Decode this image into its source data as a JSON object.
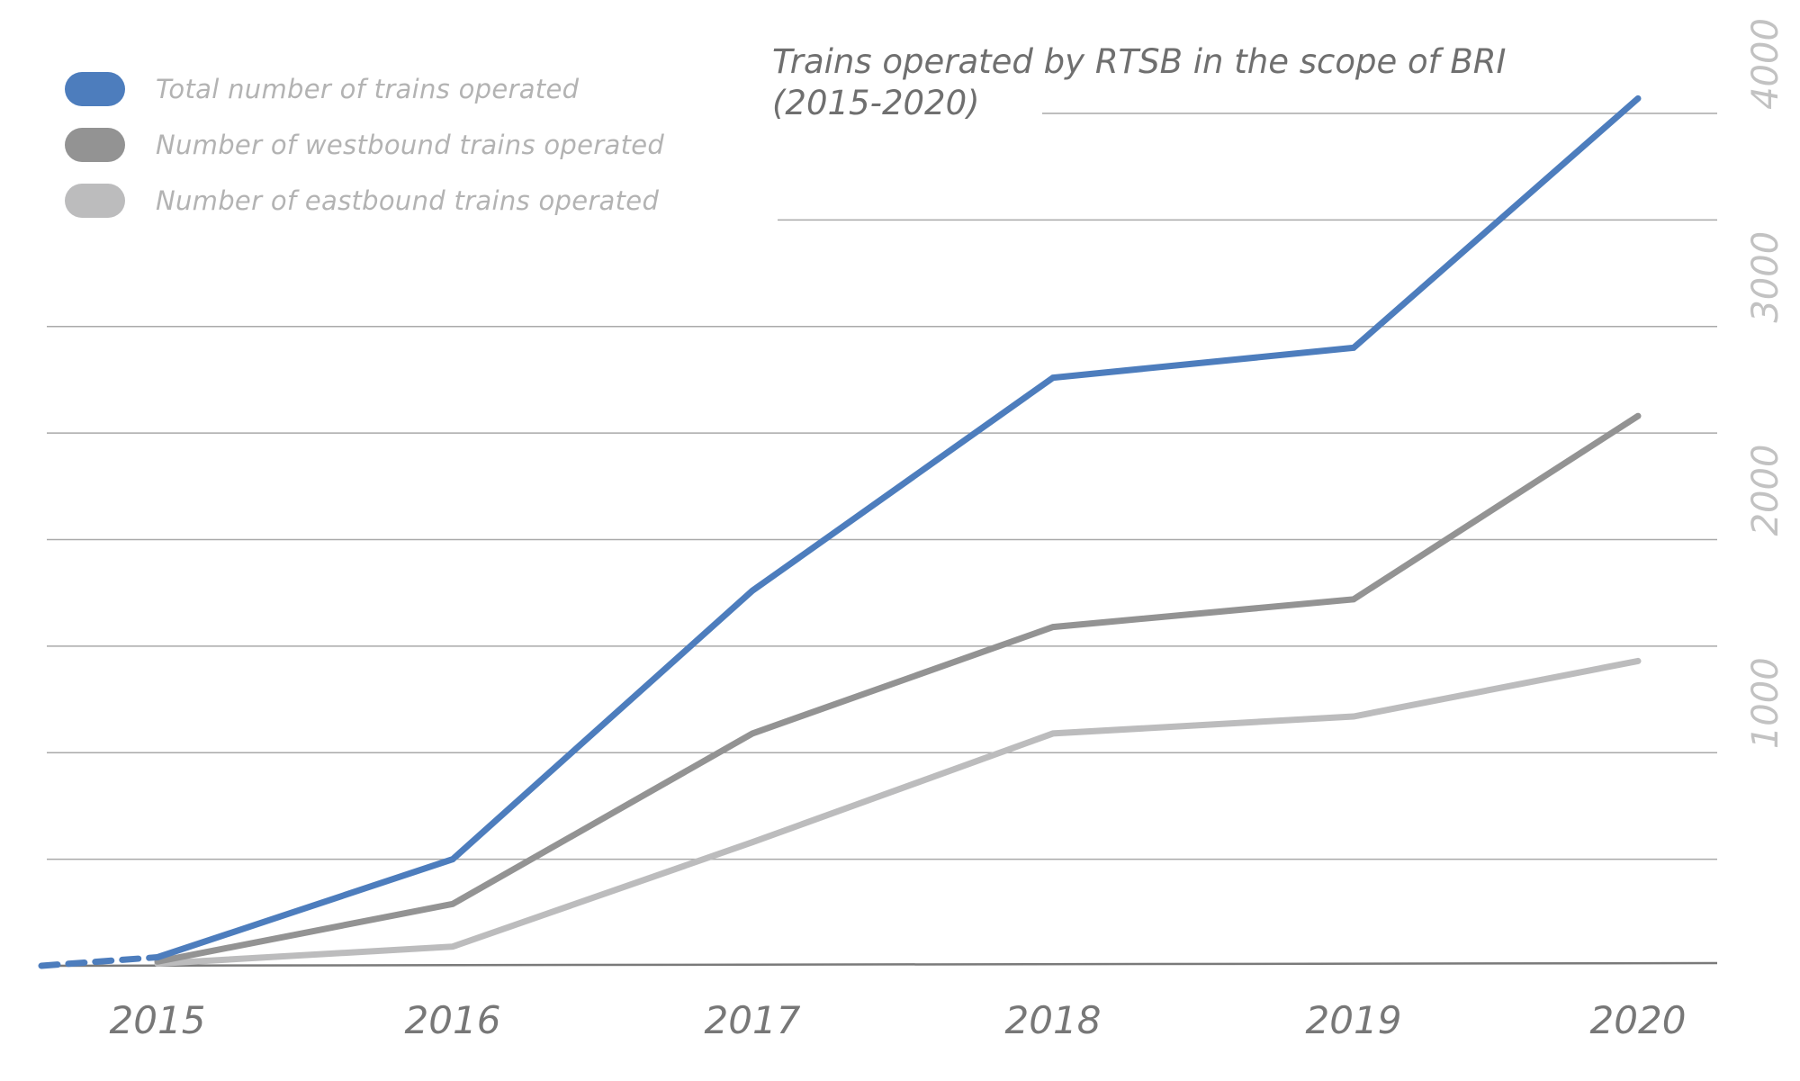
{
  "chart_data": {
    "type": "line",
    "title": "Trains operated by RTSB in the scope of BRI",
    "subtitle": "(2015-2020)",
    "x": [
      "2015",
      "2016",
      "2017",
      "2018",
      "2019",
      "2020"
    ],
    "ylim": [
      0,
      4000
    ],
    "yticks": [
      "1000",
      "2000",
      "3000",
      "4000"
    ],
    "grid": true,
    "legend_position": "top-left",
    "series": [
      {
        "name": "Total number of trains operated",
        "color": "#4d7dbd",
        "values": [
          40,
          500,
          1760,
          2760,
          2900,
          4070
        ],
        "lead_in_dashed": true
      },
      {
        "name": "Number of westbound trains operated",
        "color": "#939393",
        "values": [
          20,
          290,
          1090,
          1590,
          1720,
          2580
        ]
      },
      {
        "name": "Number of eastbound trains operated",
        "color": "#bcbcbd",
        "values": [
          10,
          90,
          580,
          1090,
          1170,
          1430
        ]
      }
    ]
  }
}
